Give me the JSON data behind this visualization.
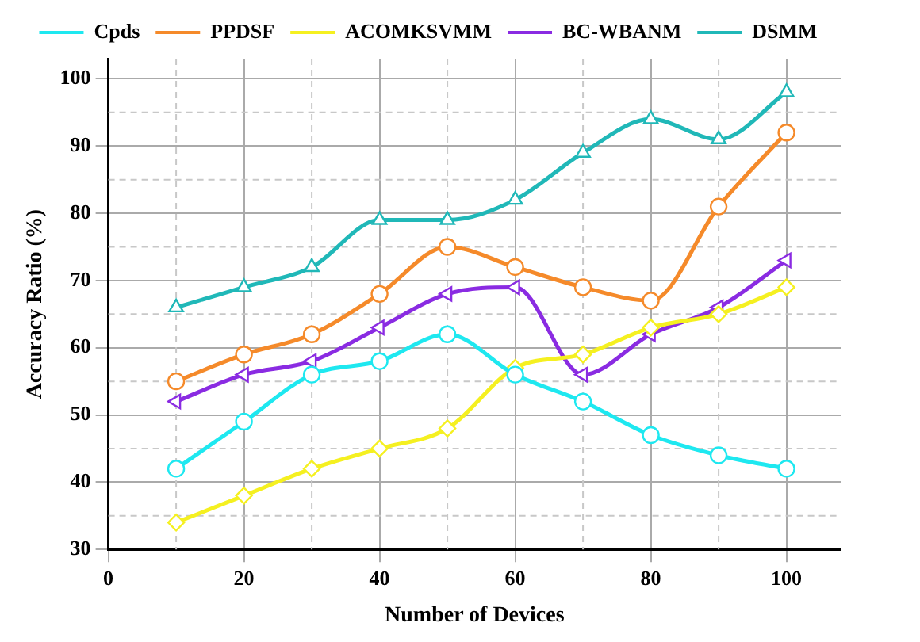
{
  "chart_data": {
    "type": "line",
    "xlabel": "Number of Devices",
    "ylabel": "Accuracy Ratio (%)",
    "x": [
      10,
      20,
      30,
      40,
      50,
      60,
      70,
      80,
      90,
      100
    ],
    "series": [
      {
        "name": "Cpds",
        "color": "#1ee8f0",
        "marker": "circle",
        "values": [
          42,
          49,
          56,
          58,
          62,
          56,
          52,
          47,
          44,
          42
        ]
      },
      {
        "name": "PPDSF",
        "color": "#f58a2a",
        "marker": "circle",
        "values": [
          55,
          59,
          62,
          68,
          75,
          72,
          69,
          67,
          81,
          92
        ]
      },
      {
        "name": "ACOMKSVMM",
        "color": "#f5f020",
        "marker": "diamond",
        "values": [
          34,
          38,
          42,
          45,
          48,
          57,
          59,
          63,
          65,
          69
        ]
      },
      {
        "name": "BC-WBANM",
        "color": "#8a2be2",
        "marker": "triangle-left",
        "values": [
          52,
          56,
          58,
          63,
          68,
          69,
          56,
          62,
          66,
          73
        ]
      },
      {
        "name": "DSMM",
        "color": "#20b8b8",
        "marker": "triangle",
        "values": [
          66,
          69,
          72,
          79,
          79,
          82,
          89,
          94,
          91,
          98
        ]
      }
    ],
    "xlim": [
      0,
      108
    ],
    "xticks": [
      0,
      20,
      40,
      60,
      80,
      100
    ],
    "ylim": [
      30,
      103
    ],
    "yticks": [
      30,
      40,
      50,
      60,
      70,
      80,
      90,
      100
    ],
    "grid": true,
    "legend": "top",
    "line_style": "solid"
  }
}
